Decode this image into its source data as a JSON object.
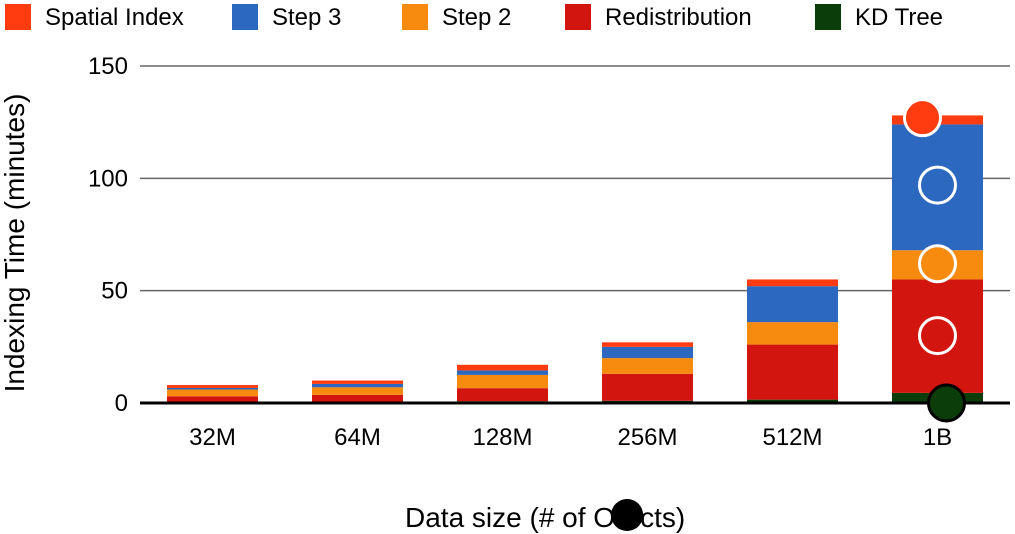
{
  "chart_data": {
    "type": "bar",
    "stacked": true,
    "xlabel": "Data size (# of O",
    "xlabel_suffix": "cts)",
    "ylabel": "Indexing Time (minutes)",
    "ylim": [
      0,
      150
    ],
    "yticks": [
      0,
      50,
      100,
      150
    ],
    "grid": true,
    "legend_position": "top",
    "categories": [
      "32M",
      "64M",
      "128M",
      "256M",
      "512M",
      "1B"
    ],
    "series": [
      {
        "name": "KD Tree",
        "color": "#0b3d0b",
        "values": [
          0.5,
          0.6,
          0.8,
          1.0,
          1.5,
          4.5
        ]
      },
      {
        "name": "Redistribution",
        "color": "#d2150f",
        "values": [
          2.5,
          3.0,
          5.8,
          12.0,
          24.5,
          50.5
        ]
      },
      {
        "name": "Step 2",
        "color": "#f68b0f",
        "values": [
          3.0,
          3.4,
          5.9,
          7.0,
          10.0,
          13.0
        ]
      },
      {
        "name": "Step 3",
        "color": "#2c68bf",
        "values": [
          0.7,
          1.5,
          2.0,
          5.0,
          16.0,
          56.0
        ]
      },
      {
        "name": "Spatial Index",
        "color": "#ff3b0f",
        "values": [
          1.3,
          1.5,
          2.5,
          2.0,
          3.0,
          4.0
        ]
      }
    ],
    "legend_order": [
      "Spatial Index",
      "Step 3",
      "Step 2",
      "Redistribution",
      "KD Tree"
    ],
    "markers": [
      {
        "category": "1B",
        "series": "Spatial Index",
        "y": 127,
        "fill": "#ff3b0f",
        "stroke": "#ffffff"
      },
      {
        "category": "1B",
        "series": "Step 3",
        "y": 97,
        "fill": "#2c68bf",
        "stroke": "#ffffff"
      },
      {
        "category": "1B",
        "series": "Step 2",
        "y": 62,
        "fill": "#f68b0f",
        "stroke": "#ffffff"
      },
      {
        "category": "1B",
        "series": "Redistribution",
        "y": 30,
        "fill": "#d2150f",
        "stroke": "#ffffff"
      },
      {
        "category": "1B",
        "series": "KD Tree",
        "y": 0,
        "fill": "#0b3d0b",
        "stroke": "#000000"
      }
    ]
  }
}
